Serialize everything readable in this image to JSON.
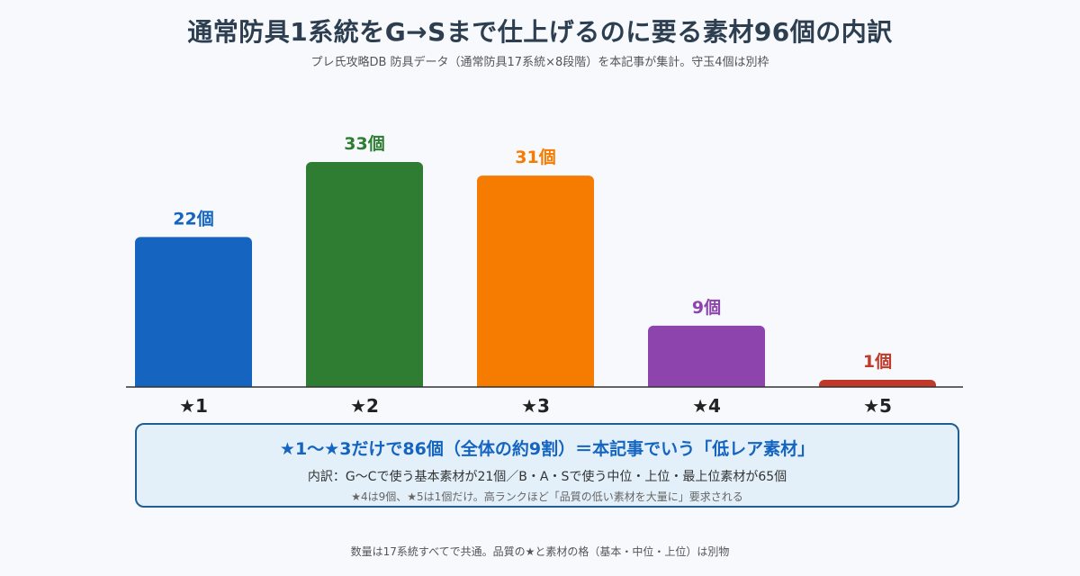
{
  "header": {
    "title": "通常防具1系統をG→Sまで仕上げるのに要る素材96個の内訳",
    "subtitle": "プレ氏攻略DB 防具データ（通常防具17系統×8段階）を本記事が集計。守玉4個は別枠"
  },
  "chart_data": {
    "type": "bar",
    "categories": [
      "★1",
      "★2",
      "★3",
      "★4",
      "★5"
    ],
    "values": [
      22,
      33,
      31,
      9,
      1
    ],
    "value_labels": [
      "22個",
      "33個",
      "31個",
      "9個",
      "1個"
    ],
    "colors": [
      "#1565c0",
      "#2e7d32",
      "#f57c00",
      "#8e44ad",
      "#c0392b"
    ],
    "ylim": [
      0,
      33
    ],
    "grid": false,
    "legend": "none"
  },
  "summary": {
    "headline": "★1〜★3だけで86個（全体の約9割）＝本記事でいう「低レア素材」",
    "detail": "内訳：G〜Cで使う基本素材が21個／B・A・Sで使う中位・上位・最上位素材が65個",
    "note": "★4は9個、★5は1個だけ。高ランクほど「品質の低い素材を大量に」要求される"
  },
  "footnote": "数量は17系統すべてで共通。品質の★と素材の格（基本・中位・上位）は別物"
}
